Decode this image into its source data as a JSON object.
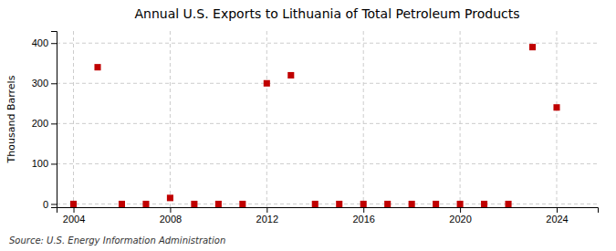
{
  "chart_data": {
    "type": "scatter",
    "title": "Annual U.S. Exports to Lithuania of Total Petroleum Products",
    "ylabel": "Thousand Barrels",
    "annotations": [
      "Source: U.S. Energy Information Administration"
    ],
    "x": [
      2004,
      2005,
      2006,
      2007,
      2008,
      2009,
      2010,
      2011,
      2012,
      2013,
      2014,
      2015,
      2016,
      2017,
      2018,
      2019,
      2020,
      2021,
      2022,
      2023,
      2024
    ],
    "values": [
      0,
      340,
      0,
      0,
      15,
      0,
      0,
      0,
      300,
      320,
      0,
      0,
      0,
      0,
      0,
      0,
      0,
      0,
      0,
      390,
      240
    ],
    "xlim": [
      2003.3,
      2025.7
    ],
    "ylim": [
      -8,
      430
    ],
    "xticks": [
      2004,
      2008,
      2012,
      2016,
      2020,
      2024
    ],
    "yticks": [
      0,
      100,
      200,
      300,
      400
    ],
    "color": "#c00000",
    "marker": "square",
    "grid": true
  }
}
